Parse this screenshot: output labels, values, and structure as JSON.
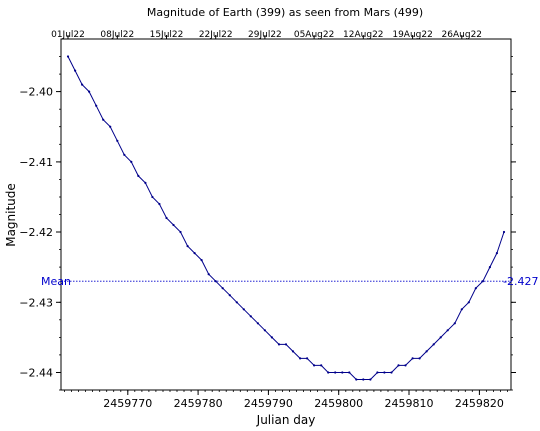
{
  "chart_data": {
    "type": "line",
    "title": "Magnitude of Earth (399) as seen from Mars (499)",
    "xlabel": "Julian day",
    "ylabel": "Magnitude",
    "xlim": [
      2459760.5,
      2459824.5
    ],
    "ylim": [
      -2.3925,
      -2.4425
    ],
    "y_inverted": true,
    "grid": true,
    "x_ticks": [
      {
        "value": 2459770,
        "label": "2459770"
      },
      {
        "value": 2459780,
        "label": "2459780"
      },
      {
        "value": 2459790,
        "label": "2459790"
      },
      {
        "value": 2459800,
        "label": "2459800"
      },
      {
        "value": 2459810,
        "label": "2459810"
      },
      {
        "value": 2459820,
        "label": "2459820"
      }
    ],
    "y_ticks": [
      {
        "value": -2.4,
        "label": "−2.40"
      },
      {
        "value": -2.41,
        "label": "−2.41"
      },
      {
        "value": -2.42,
        "label": "−2.42"
      },
      {
        "value": -2.43,
        "label": "−2.43"
      },
      {
        "value": -2.44,
        "label": "−2.44"
      }
    ],
    "date_ticks": [
      {
        "value": 2459761.5,
        "label": "01Jul22"
      },
      {
        "value": 2459768.5,
        "label": "08Jul22"
      },
      {
        "value": 2459775.5,
        "label": "15Jul22"
      },
      {
        "value": 2459782.5,
        "label": "22Jul22"
      },
      {
        "value": 2459789.5,
        "label": "29Jul22"
      },
      {
        "value": 2459796.5,
        "label": "05Aug22"
      },
      {
        "value": 2459803.5,
        "label": "12Aug22"
      },
      {
        "value": 2459810.5,
        "label": "19Aug22"
      },
      {
        "value": 2459817.5,
        "label": "26Aug22"
      }
    ],
    "mean": {
      "value": -2.427,
      "label": "Mean",
      "value_label": "-2.427"
    },
    "series": [
      {
        "color": "#00008b",
        "x": [
          2459761.5,
          2459762.5,
          2459763.5,
          2459764.5,
          2459765.5,
          2459766.5,
          2459767.5,
          2459768.5,
          2459769.5,
          2459770.5,
          2459771.5,
          2459772.5,
          2459773.5,
          2459774.5,
          2459775.5,
          2459776.5,
          2459777.5,
          2459778.5,
          2459779.5,
          2459780.5,
          2459781.5,
          2459782.5,
          2459783.5,
          2459784.5,
          2459785.5,
          2459786.5,
          2459787.5,
          2459788.5,
          2459789.5,
          2459790.5,
          2459791.5,
          2459792.5,
          2459793.5,
          2459794.5,
          2459795.5,
          2459796.5,
          2459797.5,
          2459798.5,
          2459799.5,
          2459800.5,
          2459801.5,
          2459802.5,
          2459803.5,
          2459804.5,
          2459805.5,
          2459806.5,
          2459807.5,
          2459808.5,
          2459809.5,
          2459810.5,
          2459811.5,
          2459812.5,
          2459813.5,
          2459814.5,
          2459815.5,
          2459816.5,
          2459817.5,
          2459818.5,
          2459819.5,
          2459820.5,
          2459821.5,
          2459822.5,
          2459823.5
        ],
        "y": [
          -2.395,
          -2.397,
          -2.399,
          -2.4,
          -2.402,
          -2.404,
          -2.405,
          -2.407,
          -2.409,
          -2.41,
          -2.412,
          -2.413,
          -2.415,
          -2.416,
          -2.418,
          -2.419,
          -2.42,
          -2.422,
          -2.423,
          -2.424,
          -2.426,
          -2.427,
          -2.428,
          -2.429,
          -2.43,
          -2.431,
          -2.432,
          -2.433,
          -2.434,
          -2.435,
          -2.436,
          -2.436,
          -2.437,
          -2.438,
          -2.438,
          -2.439,
          -2.439,
          -2.44,
          -2.44,
          -2.44,
          -2.44,
          -2.441,
          -2.441,
          -2.441,
          -2.44,
          -2.44,
          -2.44,
          -2.439,
          -2.439,
          -2.438,
          -2.438,
          -2.437,
          -2.436,
          -2.435,
          -2.434,
          -2.433,
          -2.431,
          -2.43,
          -2.428,
          -2.427,
          -2.425,
          -2.423,
          -2.42
        ]
      }
    ]
  }
}
